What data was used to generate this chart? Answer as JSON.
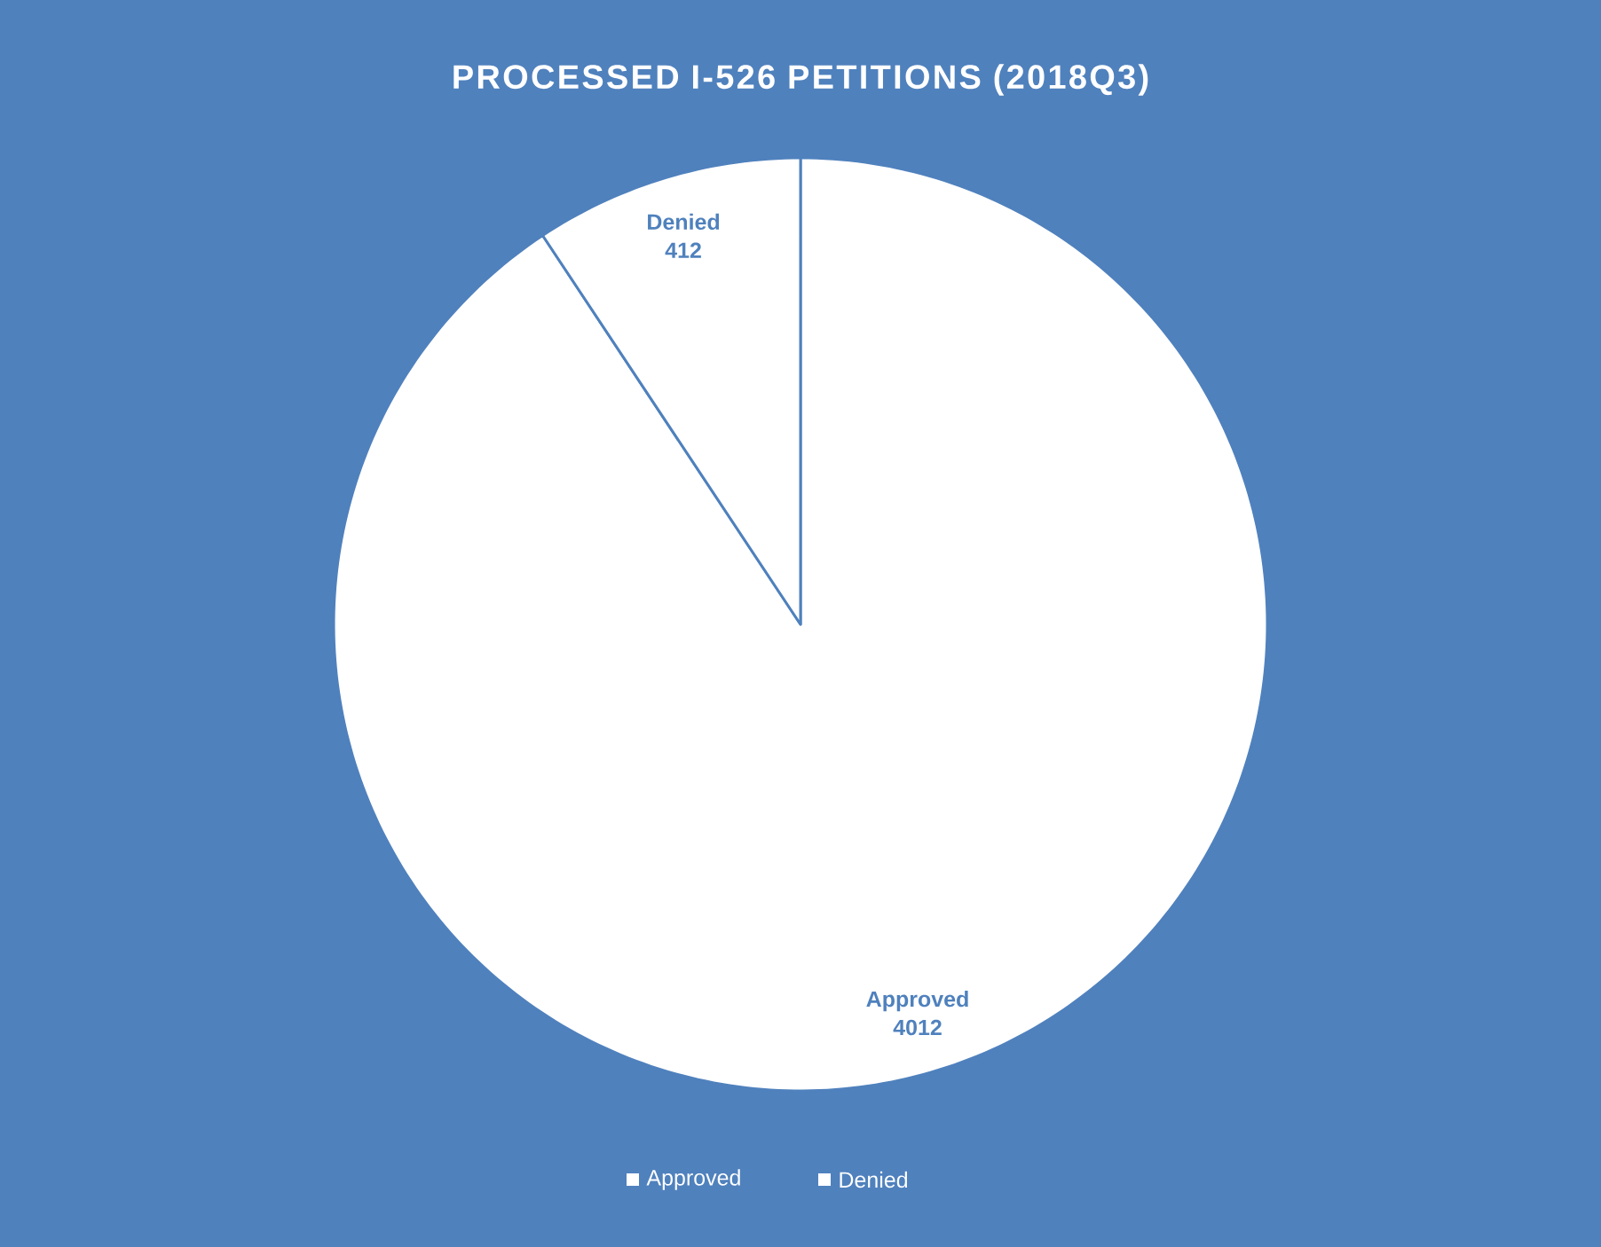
{
  "chart_data": {
    "type": "pie",
    "title": "PROCESSED I-526 PETITIONS (2018Q3)",
    "categories": [
      "Approved",
      "Denied"
    ],
    "values": [
      4012,
      412
    ],
    "colors": [
      "#ffffff",
      "#ffffff"
    ],
    "data_labels": true,
    "legend": "bottom"
  }
}
